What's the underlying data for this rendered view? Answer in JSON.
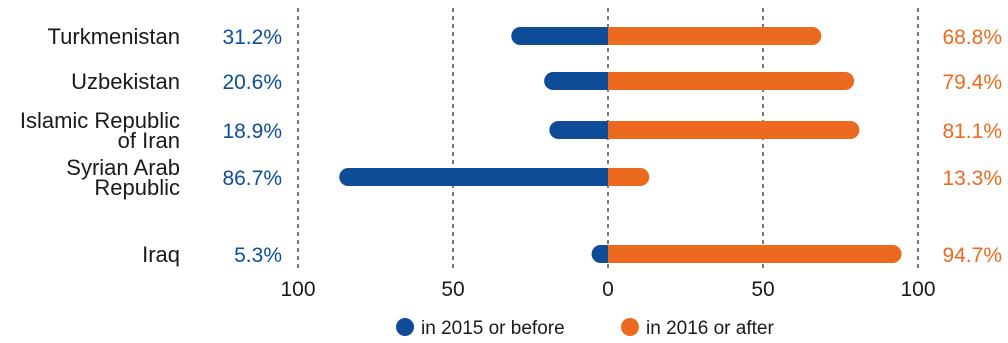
{
  "chart_data": {
    "type": "bar",
    "categories": [
      [
        "Turkmenistan"
      ],
      [
        "Uzbekistan"
      ],
      [
        "Islamic Republic",
        "of Iran"
      ],
      [
        "Syrian Arab",
        "Republic"
      ],
      [
        "Iraq"
      ]
    ],
    "series": [
      {
        "name": "in 2015 or before",
        "values": [
          31.2,
          20.6,
          18.9,
          86.7,
          5.3
        ],
        "labels": [
          "31.2%",
          "20.6%",
          "18.9%",
          "86.7%",
          "5.3%"
        ],
        "color": "#0f4c97"
      },
      {
        "name": "in 2016 or after",
        "values": [
          68.8,
          79.4,
          81.1,
          13.3,
          94.7
        ],
        "labels": [
          "68.8%",
          "79.4%",
          "81.1%",
          "13.3%",
          "94.7%"
        ],
        "color": "#ec6a1f"
      }
    ],
    "xticks": [
      "100",
      "50",
      "0",
      "50",
      "100"
    ],
    "xlim": [
      -100,
      100
    ],
    "grid": true,
    "legend_position": "bottom"
  }
}
